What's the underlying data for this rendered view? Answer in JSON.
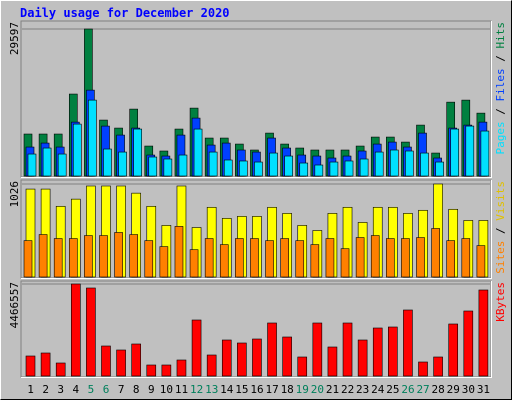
{
  "title": "Daily usage for December 2020",
  "legend_separator": " / ",
  "chart_data": [
    {
      "type": "bar",
      "ylim": [
        0,
        31007
      ],
      "yticks": [
        29597
      ],
      "series": [
        {
          "name": "Hits",
          "color": "#008040",
          "values": [
            8450,
            8450,
            8450,
            16500,
            29597,
            11260,
            9650,
            13470,
            6030,
            5030,
            9450,
            13670,
            7640,
            7640,
            6430,
            5230,
            8640,
            6430,
            5630,
            5230,
            5230,
            5230,
            6030,
            7840,
            7840,
            6830,
            10250,
            4620,
            14870,
            15280,
            12660
          ]
        },
        {
          "name": "Files",
          "color": "#0040ff",
          "values": [
            5830,
            6630,
            5830,
            10850,
            17290,
            10050,
            8240,
            9650,
            4220,
            4020,
            8240,
            11660,
            6230,
            6630,
            5230,
            4820,
            7640,
            5630,
            4220,
            4020,
            3620,
            4020,
            5030,
            6430,
            6830,
            5830,
            8640,
            3620,
            9650,
            10250,
            10850
          ]
        },
        {
          "name": "Pages",
          "color": "#00e0ff",
          "values": [
            4420,
            5630,
            4420,
            10450,
            15280,
            5430,
            4820,
            9450,
            3820,
            3420,
            4220,
            9450,
            4820,
            3220,
            3020,
            2810,
            4620,
            4020,
            2610,
            2210,
            2810,
            3020,
            3420,
            4820,
            5230,
            5030,
            4620,
            2810,
            9450,
            10050,
            9050
          ]
        }
      ]
    },
    {
      "type": "bar",
      "ylim": [
        0,
        1059
      ],
      "yticks": [
        1026
      ],
      "series": [
        {
          "name": "Visits",
          "color": "#ffff00",
          "label_color": "#e0c000",
          "values": [
            970,
            970,
            780,
            859,
            1004,
            1004,
            1004,
            925,
            780,
            569,
            1004,
            546,
            769,
            647,
            669,
            669,
            769,
            702,
            569,
            513,
            702,
            769,
            602,
            769,
            769,
            702,
            736,
            1026,
            747,
            624,
            624
          ]
        },
        {
          "name": "Sites",
          "color": "#ff8000",
          "label_color": "#ff8000",
          "values": [
            401,
            468,
            424,
            424,
            457,
            457,
            491,
            468,
            401,
            335,
            558,
            301,
            424,
            357,
            424,
            424,
            401,
            424,
            401,
            357,
            424,
            312,
            435,
            457,
            424,
            424,
            435,
            535,
            401,
            424,
            346
          ]
        }
      ]
    },
    {
      "type": "bar",
      "ylim": [
        0,
        4563656
      ],
      "yticks": [
        4466557
      ],
      "categories": [
        "1",
        "2",
        "3",
        "4",
        "5",
        "6",
        "7",
        "8",
        "9",
        "10",
        "11",
        "12",
        "13",
        "14",
        "15",
        "16",
        "17",
        "18",
        "19",
        "20",
        "21",
        "22",
        "23",
        "24",
        "25",
        "26",
        "27",
        "28",
        "29",
        "30",
        "31"
      ],
      "category_colors": [
        "#000000",
        "#000000",
        "#000000",
        "#000000",
        "#00805c",
        "#00805c",
        "#000000",
        "#000000",
        "#000000",
        "#000000",
        "#000000",
        "#00805c",
        "#00805c",
        "#000000",
        "#000000",
        "#000000",
        "#000000",
        "#000000",
        "#00805c",
        "#00805c",
        "#000000",
        "#000000",
        "#000000",
        "#000000",
        "#000000",
        "#00805c",
        "#00805c",
        "#000000",
        "#000000",
        "#000000",
        "#000000"
      ],
      "series": [
        {
          "name": "KBytes",
          "color": "#ff0000",
          "values": [
            971000,
            1116650,
            631150,
            4466557,
            4272400,
            1456500,
            1262300,
            1553600,
            534050,
            534050,
            776800,
            2718800,
            1019550,
            1747800,
            1602150,
            1796350,
            2573150,
            1893450,
            922450,
            2573150,
            1407950,
            2573150,
            1747800,
            2330400,
            2378950,
            3204300,
            679700,
            922450,
            2524600,
            3155750,
            4175300
          ]
        }
      ]
    }
  ]
}
